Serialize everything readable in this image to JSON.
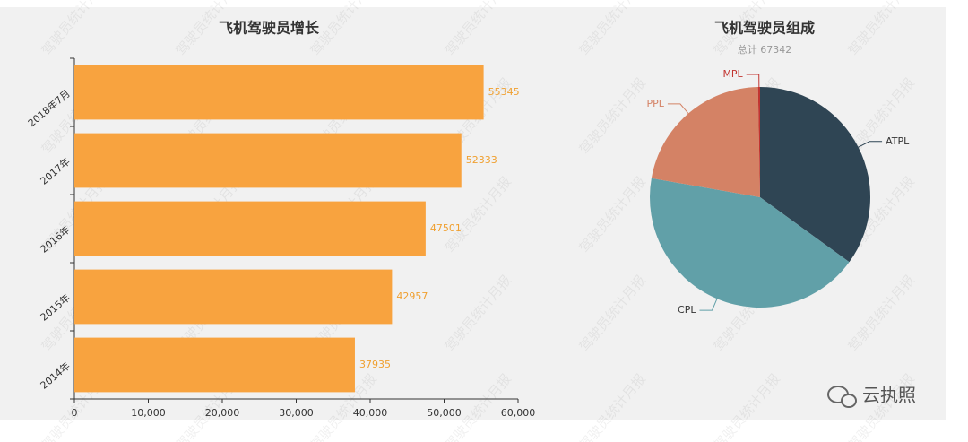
{
  "chart_data": [
    {
      "type": "hbar",
      "title": "飞机驾驶员增长",
      "categories": [
        "2018年7月",
        "2017年",
        "2016年",
        "2015年",
        "2014年"
      ],
      "values": [
        55345,
        52333,
        47501,
        42957,
        37935
      ],
      "color": "#f8a33f",
      "label_color": "#f0a030",
      "xlim": [
        0,
        60000
      ],
      "xticks": [
        0,
        {
          "value": 10000,
          "label": "10,000"
        },
        {
          "value": 20000,
          "label": "20,000"
        },
        {
          "value": 30000,
          "label": "30,000"
        },
        {
          "value": 40000,
          "label": "40,000"
        },
        {
          "value": 50000,
          "label": "50,000"
        },
        {
          "value": 60000,
          "label": "60,000"
        }
      ]
    },
    {
      "type": "pie",
      "title": "飞机驾驶员组成",
      "subtitle": "总计 67342",
      "categories": [
        "ATPL",
        "CPL",
        "PPL",
        "MPL"
      ],
      "values": [
        23570,
        28800,
        14770,
        202
      ],
      "colors": [
        "#2f4554",
        "#61a0a8",
        "#d48265",
        "#c23531"
      ]
    }
  ],
  "watermark": "驾驶员统计月报",
  "brand": "云执照"
}
